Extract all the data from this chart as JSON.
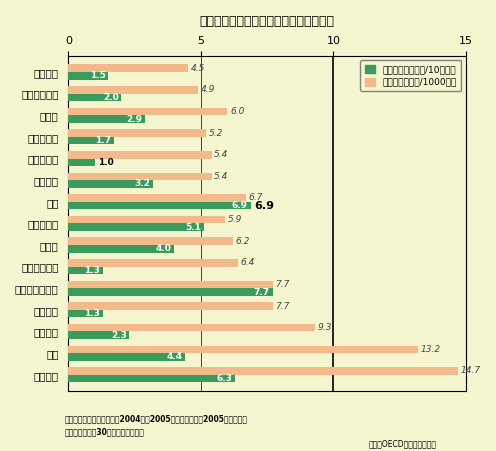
{
  "title": "人口あたりの交通事故死者数、事故件数",
  "countries": [
    "オランダ",
    "スウェーデン",
    "スイス",
    "ノルウェー",
    "デンマーク",
    "イギリス",
    "日本",
    "イスラエル",
    "ドイツ",
    "フィンランド",
    "オーストラリア",
    "フランス",
    "スペイン",
    "韓国",
    "アメリカ"
  ],
  "deaths": [
    1.5,
    2.0,
    2.9,
    1.7,
    1.0,
    3.2,
    6.9,
    5.1,
    4.0,
    1.3,
    7.7,
    1.3,
    2.3,
    4.4,
    6.3
  ],
  "accidents": [
    4.5,
    4.9,
    6.0,
    5.2,
    5.4,
    5.4,
    6.7,
    5.9,
    6.2,
    6.4,
    7.7,
    7.7,
    9.3,
    13.2,
    14.7
  ],
  "death_color": "#3a9b5c",
  "accident_color": "#f2b98a",
  "background_color": "#f5f5d0",
  "xlim": [
    0,
    15
  ],
  "xticks": [
    0,
    5,
    10,
    15
  ],
  "legend_label_death": "交通事故死者数（/10万人）",
  "legend_label_accident": "交通事故件数（/1000人）",
  "footnote1": "韓国、アメリカ：死者数は2004年と2005年、事故件数は2005年のデータ",
  "footnote2": "死者数は事故後30日の死者数で比較",
  "source": "出典：OECD資料より作成。",
  "japan_index": 6
}
